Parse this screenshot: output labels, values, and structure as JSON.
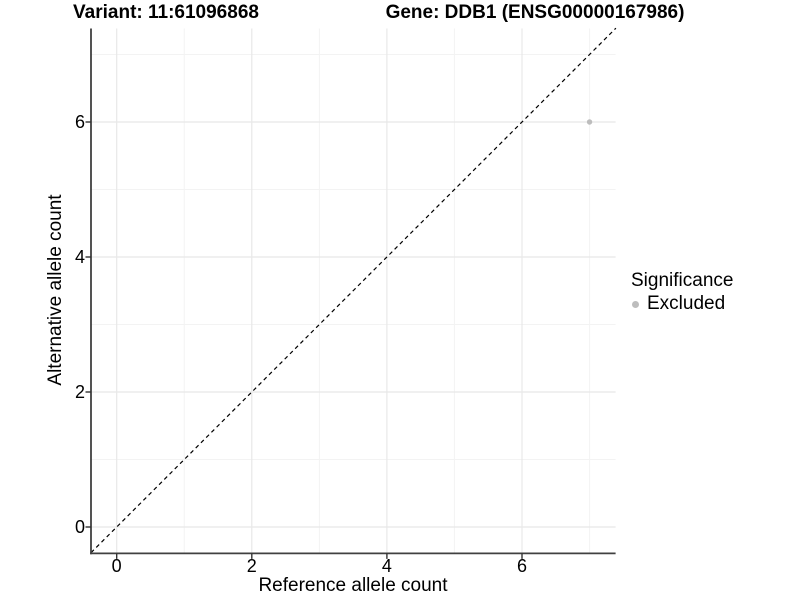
{
  "header": {
    "variant_title": "Variant: 11:61096868",
    "gene_title": "Gene: DDB1 (ENSG00000167986)"
  },
  "chart_data": {
    "type": "scatter",
    "title": "Variant: 11:61096868 — Gene: DDB1 (ENSG00000167986)",
    "xlabel": "Reference allele count",
    "ylabel": "Alternative allele count",
    "xlim": [
      -0.38,
      7.39
    ],
    "ylim": [
      -0.38,
      7.39
    ],
    "x_major_ticks": [
      0,
      2,
      4,
      6
    ],
    "y_major_ticks": [
      0,
      2,
      4,
      6
    ],
    "x_minor_gridlines": [
      1,
      3,
      5,
      7
    ],
    "y_minor_gridlines": [
      1,
      3,
      5,
      7
    ],
    "grid": "on",
    "series": [
      {
        "name": "Excluded",
        "color": "#bdbdbd",
        "points": [
          [
            7,
            6
          ]
        ]
      }
    ],
    "identity_line": {
      "style": "dashed",
      "color": "#000000",
      "from": [
        -0.38,
        -0.38
      ],
      "to": [
        7.39,
        7.39
      ]
    },
    "legend": {
      "position": "right",
      "title": "Significance",
      "entries": [
        {
          "label": "Excluded",
          "color": "#bdbdbd"
        }
      ]
    }
  },
  "colors": {
    "background": "#ffffff",
    "major_grid": "#e8e8e8",
    "minor_grid": "#f3f3f3",
    "axis_line": "#404040",
    "tick_mark": "#333333",
    "text": "#000000"
  }
}
